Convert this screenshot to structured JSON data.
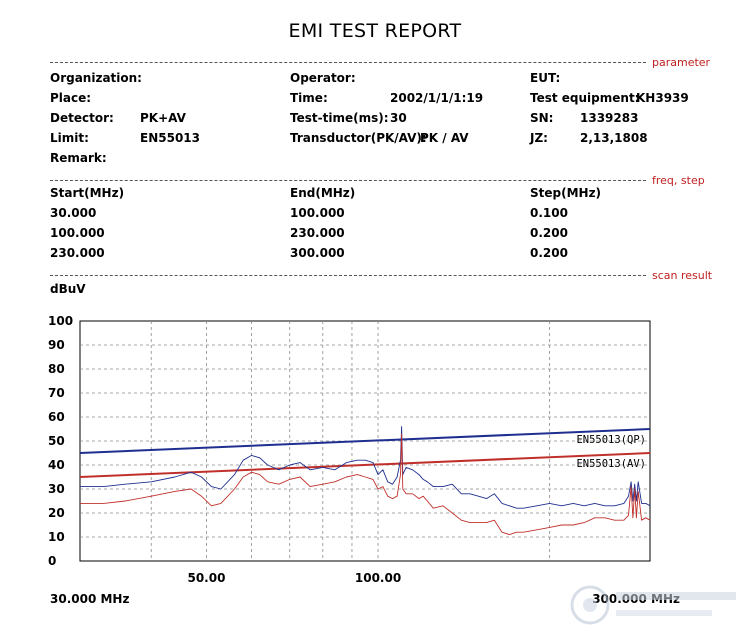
{
  "report": {
    "title": "EMI TEST REPORT"
  },
  "sections": {
    "parameter": "parameter",
    "freq_step": "freq, step",
    "scan_result": "scan result"
  },
  "parameters": {
    "organization_label": "Organization:",
    "organization_value": "",
    "place_label": "Place:",
    "place_value": "",
    "detector_label": "Detector:",
    "detector_value": "PK+AV",
    "limit_label": "Limit:",
    "limit_value": "EN55013",
    "remark_label": "Remark:",
    "remark_value": "",
    "operator_label": "Operator:",
    "operator_value": "",
    "time_label": "Time:",
    "time_value": "2002/1/1/1:19",
    "test_time_label": "Test-time(ms):",
    "test_time_value": "30",
    "transductor_label": "Transductor(PK/AV):",
    "transductor_value": "PK  /  AV",
    "eut_label": "EUT:",
    "eut_value": "",
    "equipment_label": "Test equipment:",
    "equipment_value": "KH3939",
    "sn_label": "SN:",
    "sn_value": "1339283",
    "jz_label": "JZ:",
    "jz_value": "2,13,1808"
  },
  "freq_table": {
    "headers": [
      "Start(MHz)",
      "End(MHz)",
      "Step(MHz)"
    ],
    "rows": [
      [
        "30.000",
        "100.000",
        "0.100"
      ],
      [
        "100.000",
        "230.000",
        "0.200"
      ],
      [
        "230.000",
        "300.000",
        "0.200"
      ]
    ]
  },
  "chart_data": {
    "type": "line",
    "ylabel": "dBuV",
    "ylim": [
      0,
      100
    ],
    "y_ticks": [
      "100",
      "90",
      "80",
      "70",
      "60",
      "50",
      "40",
      "30",
      "20",
      "10",
      "0"
    ],
    "x_scale": "log",
    "xlim": [
      30,
      300
    ],
    "x_tick_labels": [
      {
        "value": 50,
        "label": "50.00"
      },
      {
        "value": 100,
        "label": "100.00"
      }
    ],
    "x_start_label": "30.000 MHz",
    "x_end_label": "300.000 MHz",
    "grid": true,
    "series": [
      {
        "name": "EN55013(QP)",
        "color": "#1f2f8f",
        "x": [
          30,
          300
        ],
        "y": [
          45,
          55
        ]
      },
      {
        "name": "EN55013(AV)",
        "color": "#c0302a",
        "x": [
          30,
          300
        ],
        "y": [
          35,
          45
        ]
      },
      {
        "color": "#1f2f8f",
        "x": [
          30,
          33,
          36,
          40,
          44,
          47,
          49,
          51,
          53,
          56,
          58,
          60,
          62,
          64,
          67,
          70,
          73,
          76,
          80,
          84,
          88,
          92,
          95,
          98,
          100,
          102,
          104,
          106,
          108,
          109.5,
          110,
          110.5,
          112,
          115,
          118,
          120,
          122,
          125,
          130,
          135,
          140,
          145,
          150,
          155,
          160,
          165,
          170,
          175,
          180,
          190,
          200,
          210,
          220,
          230,
          240,
          250,
          260,
          270,
          275,
          278,
          280,
          282,
          284,
          286,
          290,
          295,
          300
        ],
        "y": [
          31,
          31,
          32,
          33,
          35,
          37,
          35,
          31,
          30,
          36,
          42,
          44,
          43,
          40,
          38,
          40,
          41,
          38,
          39,
          38,
          41,
          42,
          42,
          41,
          36,
          38,
          33,
          32,
          35,
          42,
          56,
          36,
          39,
          38,
          36,
          34,
          33,
          31,
          31,
          32,
          28,
          28,
          27,
          26,
          28,
          24,
          23,
          22,
          22,
          23,
          24,
          23,
          24,
          23,
          24,
          23,
          23,
          24,
          27,
          33,
          25,
          32,
          25,
          33,
          24,
          24,
          23
        ]
      },
      {
        "color": "#c0302a",
        "x": [
          30,
          33,
          36,
          40,
          44,
          47,
          49,
          51,
          53,
          56,
          58,
          60,
          62,
          64,
          67,
          70,
          73,
          76,
          80,
          84,
          88,
          92,
          95,
          98,
          100,
          102,
          104,
          106,
          108,
          109.5,
          110,
          110.5,
          112,
          115,
          118,
          120,
          122,
          125,
          130,
          135,
          140,
          145,
          150,
          155,
          160,
          165,
          170,
          175,
          180,
          190,
          200,
          210,
          220,
          230,
          240,
          250,
          260,
          270,
          275,
          278,
          280,
          282,
          284,
          286,
          290,
          295,
          300
        ],
        "y": [
          24,
          24,
          25,
          27,
          29,
          30,
          27,
          23,
          24,
          30,
          35,
          37,
          36,
          33,
          32,
          34,
          35,
          31,
          32,
          33,
          35,
          36,
          35,
          34,
          30,
          31,
          27,
          26,
          27,
          36,
          53,
          30,
          28,
          28,
          26,
          27,
          25,
          22,
          23,
          20,
          17,
          16,
          16,
          16,
          17,
          12,
          11,
          12,
          12,
          13,
          14,
          15,
          15,
          16,
          18,
          18,
          17,
          17,
          19,
          31,
          18,
          30,
          18,
          29,
          17,
          18,
          17
        ]
      }
    ]
  }
}
